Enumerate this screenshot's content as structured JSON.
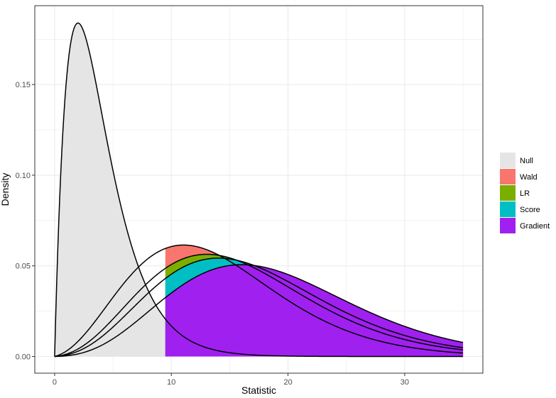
{
  "chart_data": {
    "type": "area",
    "title": "",
    "xlabel": "Statistic",
    "ylabel": "Density",
    "xlim": [
      -1.7,
      36.7
    ],
    "ylim": [
      -0.0092,
      0.1935
    ],
    "x_ticks": [
      0,
      10,
      20,
      30
    ],
    "y_ticks": [
      0.0,
      0.05,
      0.1,
      0.15
    ],
    "x_tick_labels": [
      "0",
      "10",
      "20",
      "30"
    ],
    "y_tick_labels": [
      "0.00",
      "0.05",
      "0.10",
      "0.15"
    ],
    "grid": true,
    "critical_value": 9.49,
    "x_max": 35,
    "legend": {
      "placement": "right",
      "entries": [
        "Null",
        "Wald",
        "LR",
        "Score",
        "Gradient"
      ]
    },
    "series": [
      {
        "name": "Null",
        "df": 4,
        "ncp": 0,
        "color": "#e5e5e5",
        "shade": "below-critical"
      },
      {
        "name": "Wald",
        "df": 4,
        "ncp": 10,
        "color": "#f8766d",
        "shade": "above-critical"
      },
      {
        "name": "LR",
        "df": 4,
        "ncp": 12,
        "color": "#7cae00",
        "shade": "above-critical"
      },
      {
        "name": "Score",
        "df": 4,
        "ncp": 13,
        "color": "#00bfc4",
        "shade": "above-critical"
      },
      {
        "name": "Gradient",
        "df": 4,
        "ncp": 15,
        "color": "#a020f0",
        "shade": "above-critical"
      }
    ]
  },
  "colors": {
    "panel_bg": "#ffffff",
    "grid": "#ebebeb",
    "border": "#333333",
    "curve": "#000000"
  }
}
